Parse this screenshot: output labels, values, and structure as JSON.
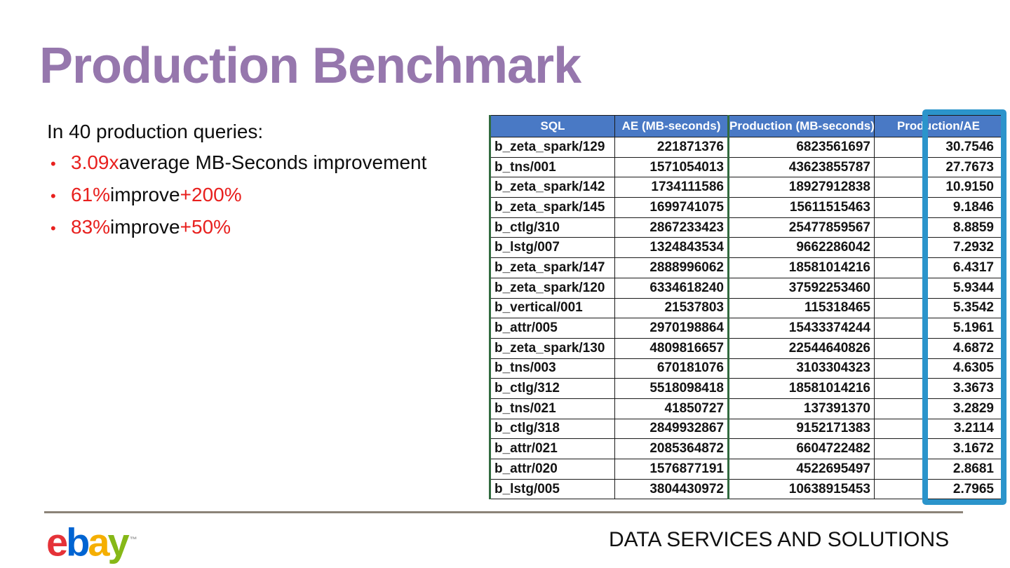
{
  "slide": {
    "title": "Production Benchmark",
    "intro": "In 40 production queries:",
    "bullet_char": "•",
    "bullets": [
      {
        "segments": [
          {
            "text": "3.09x",
            "red": true
          },
          {
            "text": " average MB-Seconds improvement",
            "red": false
          }
        ]
      },
      {
        "segments": [
          {
            "text": "61%",
            "red": true
          },
          {
            "text": " improve ",
            "red": false
          },
          {
            "text": "+200%",
            "red": true
          }
        ]
      },
      {
        "segments": [
          {
            "text": "83%",
            "red": true
          },
          {
            "text": " improve ",
            "red": false
          },
          {
            "text": "+50%",
            "red": true
          }
        ]
      }
    ]
  },
  "table": {
    "columns": [
      "SQL",
      "AE (MB-seconds)",
      "Production (MB-seconds)",
      "Production/AE"
    ],
    "rows": [
      [
        "b_zeta_spark/129",
        "221871376",
        "6823561697",
        "30.7546"
      ],
      [
        "b_tns/001",
        "1571054013",
        "43623855787",
        "27.7673"
      ],
      [
        "b_zeta_spark/142",
        "1734111586",
        "18927912838",
        "10.9150"
      ],
      [
        "b_zeta_spark/145",
        "1699741075",
        "15611515463",
        "9.1846"
      ],
      [
        "b_ctlg/310",
        "2867233423",
        "25477859567",
        "8.8859"
      ],
      [
        "b_lstg/007",
        "1324843534",
        "9662286042",
        "7.2932"
      ],
      [
        "b_zeta_spark/147",
        "2888996062",
        "18581014216",
        "6.4317"
      ],
      [
        "b_zeta_spark/120",
        "6334618240",
        "37592253460",
        "5.9344"
      ],
      [
        "b_vertical/001",
        "21537803",
        "115318465",
        "5.3542"
      ],
      [
        "b_attr/005",
        "2970198864",
        "15433374244",
        "5.1961"
      ],
      [
        "b_zeta_spark/130",
        "4809816657",
        "22544640826",
        "4.6872"
      ],
      [
        "b_tns/003",
        "670181076",
        "3103304323",
        "4.6305"
      ],
      [
        "b_ctlg/312",
        "5518098418",
        "18581014216",
        "3.3673"
      ],
      [
        "b_tns/021",
        "41850727",
        "137391370",
        "3.2829"
      ],
      [
        "b_ctlg/318",
        "2849932867",
        "9152171383",
        "3.2114"
      ],
      [
        "b_attr/021",
        "2085364872",
        "6604722482",
        "3.1672"
      ],
      [
        "b_attr/020",
        "1576877191",
        "4522695497",
        "2.8681"
      ],
      [
        "b_lstg/005",
        "3804430972",
        "10638915453",
        "2.7965"
      ]
    ]
  },
  "footer": {
    "brand_letters": [
      {
        "ch": "e",
        "color": "#e53238"
      },
      {
        "ch": "b",
        "color": "#0064d2"
      },
      {
        "ch": "a",
        "color": "#f5af02"
      },
      {
        "ch": "y",
        "color": "#86b817"
      }
    ],
    "trademark": "™",
    "label": "DATA SERVICES AND SOLUTIONS"
  },
  "colors": {
    "title_purple": "#9677ad",
    "accent_red": "#e8201e",
    "table_header_blue": "#4979c5",
    "highlight_teal": "#2b94cb",
    "accent_border_green": "#316b3f",
    "divider_gray": "#8b8378"
  }
}
